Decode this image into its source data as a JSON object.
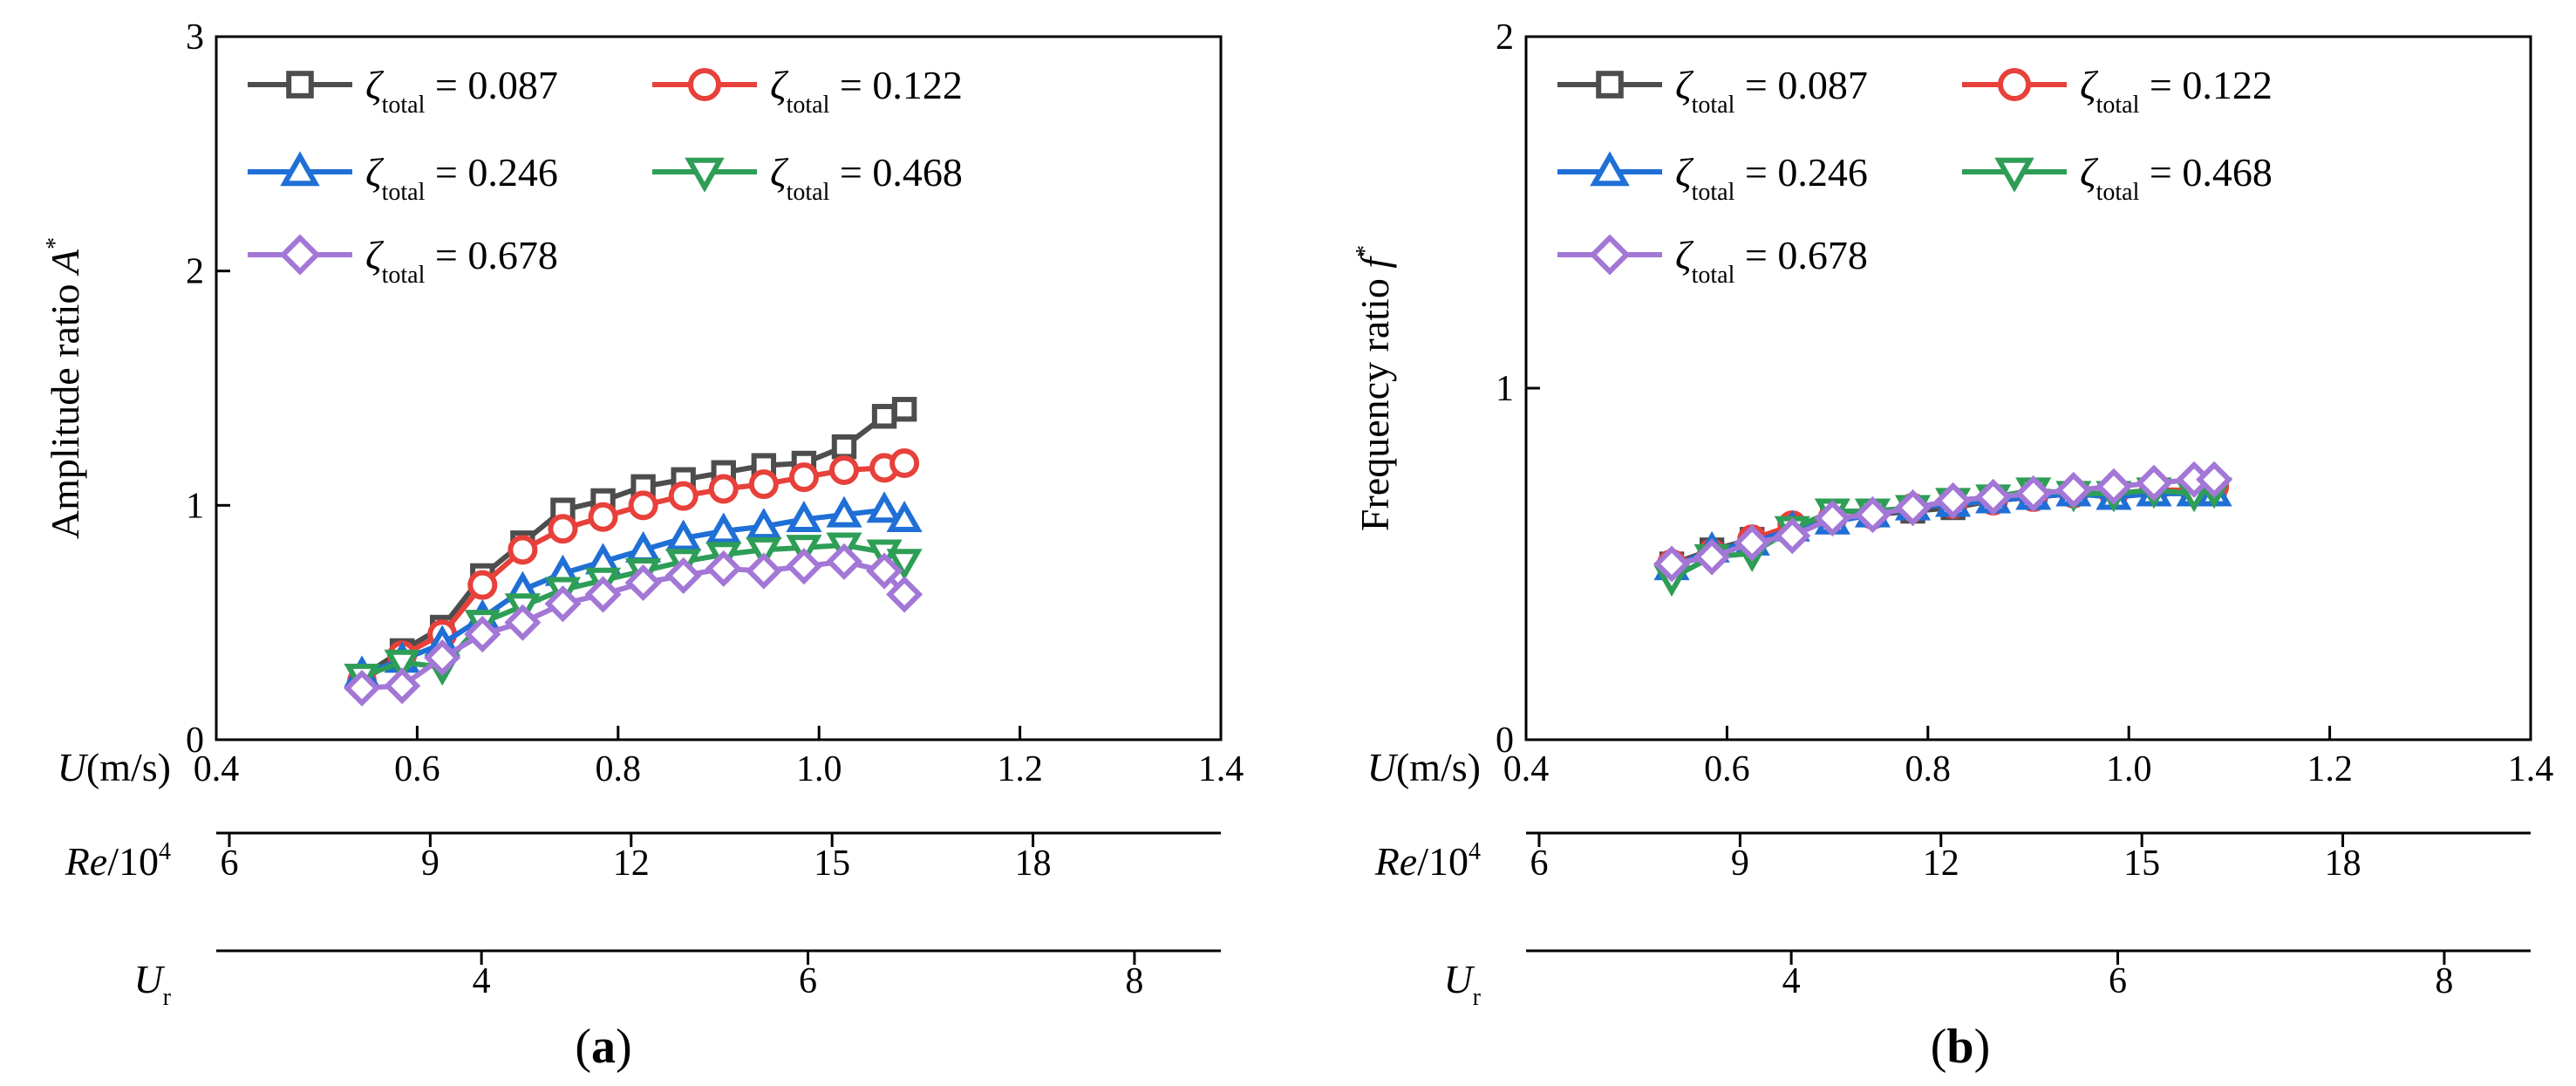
{
  "figure_labels": {
    "panel_a": "a",
    "panel_b": "b"
  },
  "chart_data": [
    {
      "type": "line",
      "panel": "a",
      "title": "",
      "ylabel": "Amplitude ratio A",
      "ylabel_main": "Amplitude ratio ",
      "ylabel_sym": "A",
      "ylabel_sup": "*",
      "ylim": [
        0,
        3
      ],
      "yticks": [
        "0",
        "1",
        "2",
        "3"
      ],
      "xlim": [
        0.4,
        1.4
      ],
      "x_axes": [
        {
          "label_main": "U",
          "label_rest": "(m/s)",
          "ticks": [
            "0.4",
            "0.6",
            "0.8",
            "1.0",
            "1.2",
            "1.4"
          ],
          "tick_positions": [
            0.4,
            0.6,
            0.8,
            1.0,
            1.2,
            1.4
          ]
        },
        {
          "label_main": "Re",
          "label_rest": "/10",
          "label_sup": "4",
          "ticks": [
            "6",
            "9",
            "12",
            "15",
            "18"
          ],
          "tick_positions": [
            0.413,
            0.613,
            0.813,
            1.013,
            1.213
          ]
        },
        {
          "label_main": "U",
          "label_sub": "r",
          "ticks": [
            "4",
            "6",
            "8"
          ],
          "tick_positions": [
            0.664,
            0.989,
            1.314
          ]
        }
      ],
      "x": [
        0.545,
        0.585,
        0.625,
        0.665,
        0.705,
        0.745,
        0.785,
        0.825,
        0.865,
        0.905,
        0.945,
        0.985,
        1.025,
        1.065,
        1.085
      ],
      "series": [
        {
          "name": "0.087",
          "legend_sym": "ζ",
          "legend_sub": "total",
          "legend_val": "= 0.087",
          "color": "#4d4d4d",
          "marker": "square",
          "values": [
            0.27,
            0.38,
            0.48,
            0.7,
            0.84,
            0.98,
            1.02,
            1.08,
            1.11,
            1.14,
            1.17,
            1.18,
            1.25,
            1.38,
            1.41
          ]
        },
        {
          "name": "0.122",
          "legend_sym": "ζ",
          "legend_sub": "total",
          "legend_val": "= 0.122",
          "color": "#e8403a",
          "marker": "circle",
          "values": [
            0.25,
            0.36,
            0.45,
            0.66,
            0.81,
            0.9,
            0.95,
            1.0,
            1.04,
            1.07,
            1.09,
            1.12,
            1.15,
            1.16,
            1.18
          ]
        },
        {
          "name": "0.246",
          "legend_sym": "ζ",
          "legend_sub": "total",
          "legend_val": "= 0.246",
          "color": "#1f6fd6",
          "marker": "triangle-up",
          "values": [
            0.28,
            0.34,
            0.41,
            0.52,
            0.64,
            0.71,
            0.76,
            0.81,
            0.86,
            0.89,
            0.91,
            0.94,
            0.96,
            0.98,
            0.94
          ]
        },
        {
          "name": "0.468",
          "legend_sym": "ζ",
          "legend_sub": "total",
          "legend_val": "= 0.468",
          "color": "#2e9e56",
          "marker": "triangle-down",
          "values": [
            0.27,
            0.33,
            0.31,
            0.5,
            0.57,
            0.64,
            0.68,
            0.72,
            0.76,
            0.79,
            0.81,
            0.82,
            0.83,
            0.8,
            0.76
          ]
        },
        {
          "name": "0.678",
          "legend_sym": "ζ",
          "legend_sub": "total",
          "legend_val": "= 0.678",
          "color": "#a377d6",
          "marker": "diamond",
          "values": [
            0.22,
            0.23,
            0.35,
            0.45,
            0.5,
            0.58,
            0.62,
            0.67,
            0.7,
            0.73,
            0.72,
            0.74,
            0.76,
            0.72,
            0.62
          ]
        }
      ]
    },
    {
      "type": "line",
      "panel": "b",
      "title": "",
      "ylabel": "Frequency ratio f",
      "ylabel_main": "Frequency ratio ",
      "ylabel_sym": "f",
      "ylabel_sup": "*",
      "ylim": [
        0,
        2
      ],
      "yticks": [
        "0",
        "1",
        "2"
      ],
      "xlim": [
        0.4,
        1.4
      ],
      "x_axes": [
        {
          "label_main": "U",
          "label_rest": "(m/s)",
          "ticks": [
            "0.4",
            "0.6",
            "0.8",
            "1.0",
            "1.2",
            "1.4"
          ],
          "tick_positions": [
            0.4,
            0.6,
            0.8,
            1.0,
            1.2,
            1.4
          ]
        },
        {
          "label_main": "Re",
          "label_rest": "/10",
          "label_sup": "4",
          "ticks": [
            "6",
            "9",
            "12",
            "15",
            "18"
          ],
          "tick_positions": [
            0.413,
            0.613,
            0.813,
            1.013,
            1.213
          ]
        },
        {
          "label_main": "U",
          "label_sub": "r",
          "ticks": [
            "4",
            "6",
            "8"
          ],
          "tick_positions": [
            0.664,
            0.989,
            1.314
          ]
        }
      ],
      "x": [
        0.545,
        0.585,
        0.625,
        0.665,
        0.705,
        0.745,
        0.785,
        0.825,
        0.865,
        0.905,
        0.945,
        0.985,
        1.025,
        1.065,
        1.085
      ],
      "series": [
        {
          "name": "0.087",
          "legend_sym": "ζ",
          "legend_sub": "total",
          "legend_val": "= 0.087",
          "color": "#4d4d4d",
          "marker": "square",
          "values": [
            0.5,
            0.54,
            0.57,
            0.6,
            0.63,
            0.64,
            0.65,
            0.66,
            0.68,
            0.69,
            0.7,
            0.7,
            0.7,
            0.71,
            0.71
          ]
        },
        {
          "name": "0.122",
          "legend_sym": "ζ",
          "legend_sub": "total",
          "legend_val": "= 0.122",
          "color": "#e8403a",
          "marker": "circle",
          "values": [
            0.5,
            0.53,
            0.57,
            0.61,
            0.63,
            0.64,
            0.66,
            0.67,
            0.68,
            0.69,
            0.7,
            0.7,
            0.71,
            0.71,
            0.72
          ]
        },
        {
          "name": "0.246",
          "legend_sym": "ζ",
          "legend_sub": "total",
          "legend_val": "= 0.246",
          "color": "#1f6fd6",
          "marker": "triangle-up",
          "values": [
            0.49,
            0.54,
            0.56,
            0.6,
            0.62,
            0.64,
            0.66,
            0.67,
            0.68,
            0.69,
            0.7,
            0.69,
            0.7,
            0.7,
            0.7
          ]
        },
        {
          "name": "0.468",
          "legend_sym": "ζ",
          "legend_sub": "total",
          "legend_val": "= 0.468",
          "color": "#2e9e56",
          "marker": "triangle-down",
          "values": [
            0.46,
            0.52,
            0.53,
            0.6,
            0.65,
            0.65,
            0.66,
            0.68,
            0.69,
            0.71,
            0.7,
            0.7,
            0.71,
            0.7,
            0.71
          ]
        },
        {
          "name": "0.678",
          "legend_sym": "ζ",
          "legend_sub": "total",
          "legend_val": "= 0.678",
          "color": "#a377d6",
          "marker": "diamond",
          "values": [
            0.5,
            0.52,
            0.56,
            0.58,
            0.63,
            0.64,
            0.66,
            0.68,
            0.69,
            0.7,
            0.71,
            0.72,
            0.73,
            0.74,
            0.74
          ]
        }
      ]
    }
  ]
}
